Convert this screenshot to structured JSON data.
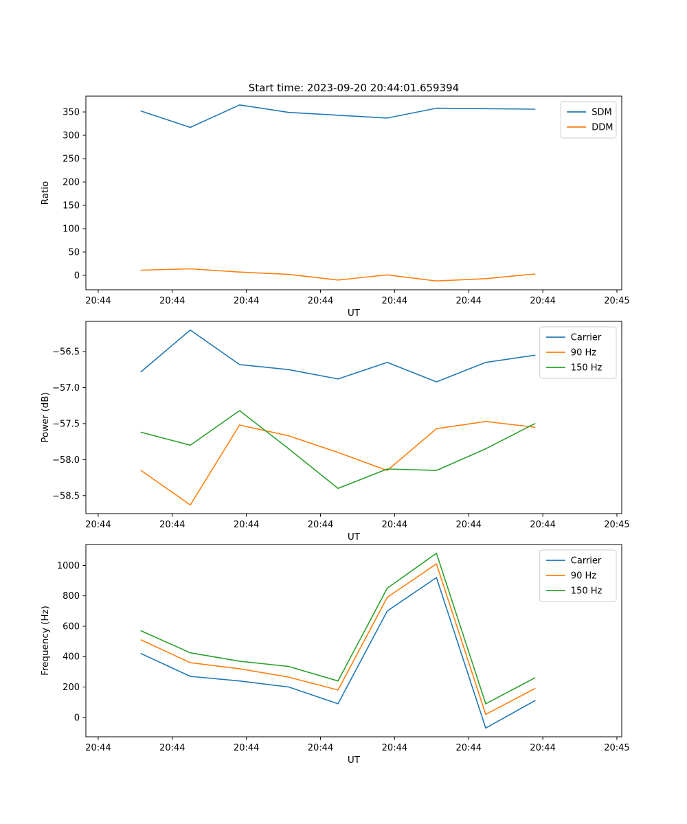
{
  "figure": {
    "title": "Start time: 2023-09-20 20:44:01.659394",
    "background": "#ffffff"
  },
  "chart_data": [
    {
      "type": "line",
      "title": "Start time: 2023-09-20 20:44:01.659394",
      "xlabel": "UT",
      "ylabel": "Ratio",
      "grid": false,
      "legend_position": "upper right",
      "x_tick_labels": [
        "20:44",
        "20:44",
        "20:44",
        "20:44",
        "20:44",
        "20:44",
        "20:44",
        "20:45"
      ],
      "y_tick_values": [
        0,
        50,
        100,
        150,
        200,
        250,
        300,
        350
      ],
      "y_tick_labels": [
        "0",
        "50",
        "100",
        "150",
        "200",
        "250",
        "300",
        "350"
      ],
      "ylim": [
        -30.9,
        383.9
      ],
      "x": [
        1,
        2,
        3,
        4,
        5,
        6,
        7,
        8,
        9
      ],
      "series": [
        {
          "name": "SDM",
          "color": "#1f77b4",
          "values": [
            352,
            317,
            365,
            349,
            343,
            337,
            358,
            357,
            356
          ]
        },
        {
          "name": "DDM",
          "color": "#ff7f0e",
          "values": [
            11,
            14,
            7,
            2,
            -10,
            1,
            -12,
            -7,
            3
          ]
        }
      ]
    },
    {
      "type": "line",
      "title": "",
      "xlabel": "UT",
      "ylabel": "Power (dB)",
      "grid": false,
      "legend_position": "upper right",
      "x_tick_labels": [
        "20:44",
        "20:44",
        "20:44",
        "20:44",
        "20:44",
        "20:44",
        "20:44",
        "20:45"
      ],
      "y_tick_values": [
        -58.5,
        -58.0,
        -57.5,
        -57.0,
        -56.5
      ],
      "y_tick_labels": [
        "−58.5",
        "−58.0",
        "−57.5",
        "−57.0",
        "−56.5"
      ],
      "ylim": [
        -58.75,
        -56.08
      ],
      "x": [
        1,
        2,
        3,
        4,
        5,
        6,
        7,
        8,
        9
      ],
      "series": [
        {
          "name": "Carrier",
          "color": "#1f77b4",
          "values": [
            -56.78,
            -56.2,
            -56.68,
            -56.75,
            -56.88,
            -56.65,
            -56.92,
            -56.65,
            -56.55
          ]
        },
        {
          "name": "90 Hz",
          "color": "#ff7f0e",
          "values": [
            -58.15,
            -58.63,
            -57.52,
            -57.67,
            -57.9,
            -58.15,
            -57.57,
            -57.47,
            -57.55
          ]
        },
        {
          "name": "150 Hz",
          "color": "#2ca02c",
          "values": [
            -57.62,
            -57.8,
            -57.32,
            -57.85,
            -58.4,
            -58.13,
            -58.15,
            -57.85,
            -57.5
          ]
        }
      ]
    },
    {
      "type": "line",
      "title": "",
      "xlabel": "UT",
      "ylabel": "Frequency (Hz)",
      "grid": false,
      "legend_position": "upper right",
      "x_tick_labels": [
        "20:44",
        "20:44",
        "20:44",
        "20:44",
        "20:44",
        "20:44",
        "20:44",
        "20:45"
      ],
      "y_tick_values": [
        0,
        200,
        400,
        600,
        800,
        1000
      ],
      "y_tick_labels": [
        "0",
        "200",
        "400",
        "600",
        "800",
        "1000"
      ],
      "ylim": [
        -127.5,
        1137.5
      ],
      "x": [
        1,
        2,
        3,
        4,
        5,
        6,
        7,
        8,
        9
      ],
      "series": [
        {
          "name": "Carrier",
          "color": "#1f77b4",
          "values": [
            420,
            270,
            240,
            200,
            90,
            700,
            920,
            -70,
            110
          ]
        },
        {
          "name": "90 Hz",
          "color": "#ff7f0e",
          "values": [
            510,
            360,
            320,
            265,
            180,
            790,
            1010,
            20,
            190
          ]
        },
        {
          "name": "150 Hz",
          "color": "#2ca02c",
          "values": [
            570,
            425,
            370,
            335,
            240,
            850,
            1080,
            90,
            260
          ]
        }
      ]
    }
  ]
}
